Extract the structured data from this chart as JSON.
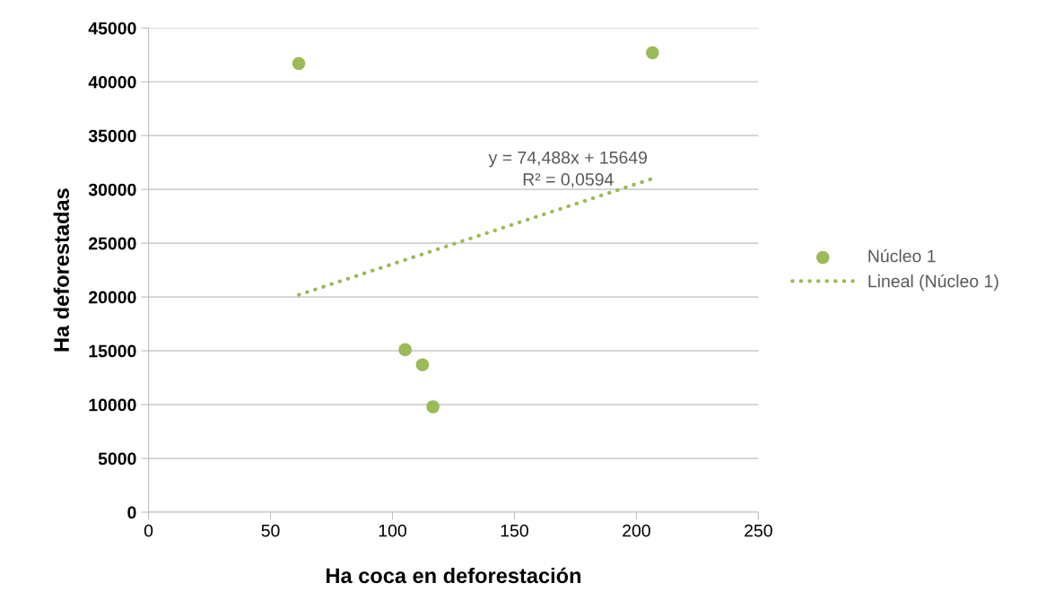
{
  "chart_data": {
    "type": "scatter",
    "xlabel": "Ha coca en deforestación",
    "ylabel": "Ha deforestadas",
    "series": [
      {
        "name": "Núcleo 1",
        "color": "#9bbb59",
        "x": [
          61.6,
          206.6,
          105.2,
          112.3,
          116.6
        ],
        "values": [
          41700,
          42700,
          15100,
          13700,
          9800
        ],
        "marker": "circle"
      },
      {
        "name": "Lineal (Núcleo 1)",
        "type": "line",
        "color": "#9bbb59",
        "x": [
          61.6,
          206.6
        ],
        "values": [
          20200,
          31000
        ],
        "line_style": "dotted",
        "marker": "none"
      }
    ],
    "annotations": [
      "y = 74,488x + 15649",
      "R² = 0,0594"
    ],
    "xlim": [
      0,
      250
    ],
    "xticks": [
      0,
      50,
      100,
      150,
      200,
      250
    ],
    "ylim": [
      0,
      45000
    ],
    "yticks": [
      0,
      5000,
      10000,
      15000,
      20000,
      25000,
      30000,
      35000,
      40000,
      45000
    ],
    "grid": "y",
    "legend": "right"
  }
}
